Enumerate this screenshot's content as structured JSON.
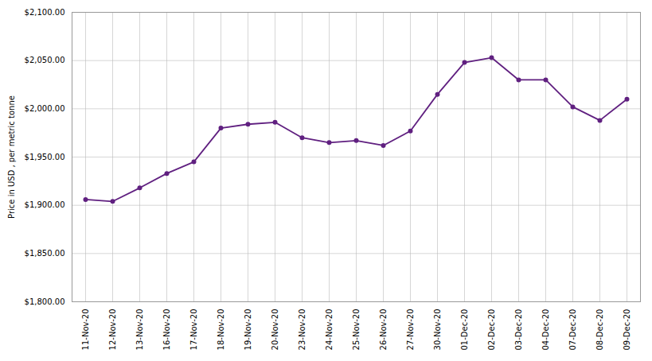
{
  "chart_data": {
    "type": "line",
    "ylabel": "Price in USD , per metric tonne",
    "categories": [
      "11-Nov-20",
      "12-Nov-20",
      "13-Nov-20",
      "16-Nov-20",
      "17-Nov-20",
      "18-Nov-20",
      "19-Nov-20",
      "20-Nov-20",
      "23-Nov-20",
      "24-Nov-20",
      "25-Nov-20",
      "26-Nov-20",
      "27-Nov-20",
      "30-Nov-20",
      "01-Dec-20",
      "02-Dec-20",
      "03-Dec-20",
      "04-Dec-20",
      "07-Dec-20",
      "08-Dec-20",
      "09-Dec-20"
    ],
    "values": [
      1906,
      1904,
      1918,
      1933,
      1945,
      1980,
      1984,
      1986,
      1970,
      1965,
      1967,
      1962,
      1977,
      2015,
      2048,
      2053,
      2030,
      2030,
      2002,
      1988,
      2010
    ],
    "color": "#602080",
    "marker": "circle",
    "ylim": [
      1800,
      2100
    ],
    "yticks": [
      {
        "value": 1800,
        "label": "$1,800.00"
      },
      {
        "value": 1850,
        "label": "$1,850.00"
      },
      {
        "value": 1900,
        "label": "$1,900.00"
      },
      {
        "value": 1950,
        "label": "$1,950.00"
      },
      {
        "value": 2000,
        "label": "$2,000.00"
      },
      {
        "value": 2050,
        "label": "$2,050.00"
      },
      {
        "value": 2100,
        "label": "$2,100.00"
      }
    ],
    "grid": true
  }
}
